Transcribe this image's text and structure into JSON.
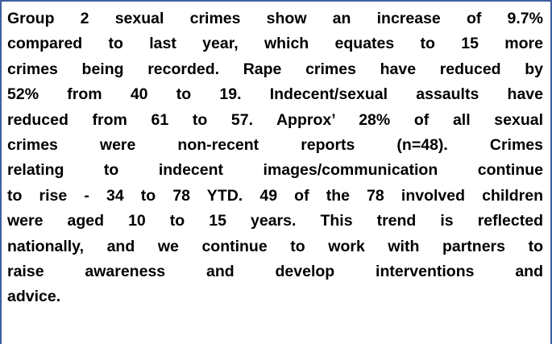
{
  "paragraph": {
    "lines": [
      "Group 2 sexual crimes show an increase of 9.7%",
      "compared to last year, which equates to 15 more",
      "crimes being recorded. Rape crimes have reduced by",
      "52% from 40 to 19. Indecent/sexual assaults have",
      "reduced from 61 to 57. Approx’ 28% of all sexual",
      "crimes were non-recent reports (n=48). Crimes",
      "relating to indecent images/communication continue",
      "to rise - 34 to 78 YTD.  49 of the 78 involved children",
      "were aged 10 to 15 years. This trend is reflected",
      "nationally, and we continue to work with partners to",
      "raise awareness and develop interventions and",
      "advice."
    ]
  }
}
